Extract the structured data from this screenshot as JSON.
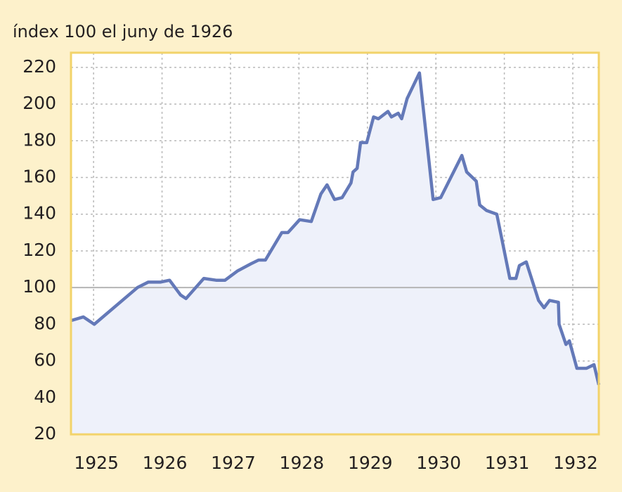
{
  "chart_data": {
    "type": "line",
    "y_label": "índex 100 el juny de 1926",
    "color": "#6479b8",
    "fill_color": "#eef1fa",
    "reference_line": 100,
    "grid": true,
    "xlim": [
      1924.67,
      1932.38
    ],
    "xticks": [
      1925,
      1926,
      1927,
      1928,
      1929,
      1930,
      1931,
      1932
    ],
    "ylim": [
      20,
      228
    ],
    "yticks": [
      20,
      40,
      60,
      80,
      100,
      120,
      140,
      160,
      180,
      200,
      220
    ],
    "x": [
      1924.67,
      1924.85,
      1925.01,
      1925.64,
      1925.8,
      1925.98,
      1926.11,
      1926.27,
      1926.35,
      1926.61,
      1926.79,
      1926.92,
      1927.1,
      1927.3,
      1927.41,
      1927.51,
      1927.75,
      1927.84,
      1928.01,
      1928.18,
      1928.32,
      1928.41,
      1928.52,
      1928.63,
      1928.76,
      1928.79,
      1928.85,
      1928.9,
      1928.99,
      1929.09,
      1929.16,
      1929.3,
      1929.35,
      1929.45,
      1929.5,
      1929.58,
      1929.76,
      1929.96,
      1930.07,
      1930.38,
      1930.45,
      1930.59,
      1930.64,
      1930.74,
      1930.89,
      1931.08,
      1931.17,
      1931.22,
      1931.32,
      1931.5,
      1931.58,
      1931.66,
      1931.79,
      1931.8,
      1931.9,
      1931.95,
      1932.06,
      1932.2,
      1932.31,
      1932.38
    ],
    "values": [
      82,
      84,
      80,
      100,
      103,
      103,
      104,
      96,
      94,
      105,
      104,
      104,
      109,
      113,
      115,
      115,
      130,
      130,
      137,
      136,
      151,
      156,
      148,
      149,
      157,
      163,
      165,
      179,
      179,
      193,
      192,
      196,
      193,
      195,
      192,
      203,
      217,
      148,
      149,
      172,
      163,
      158,
      145,
      142,
      140,
      105,
      105,
      112,
      114,
      93,
      89,
      93,
      92,
      80,
      69,
      71,
      56,
      56,
      58,
      47
    ]
  }
}
